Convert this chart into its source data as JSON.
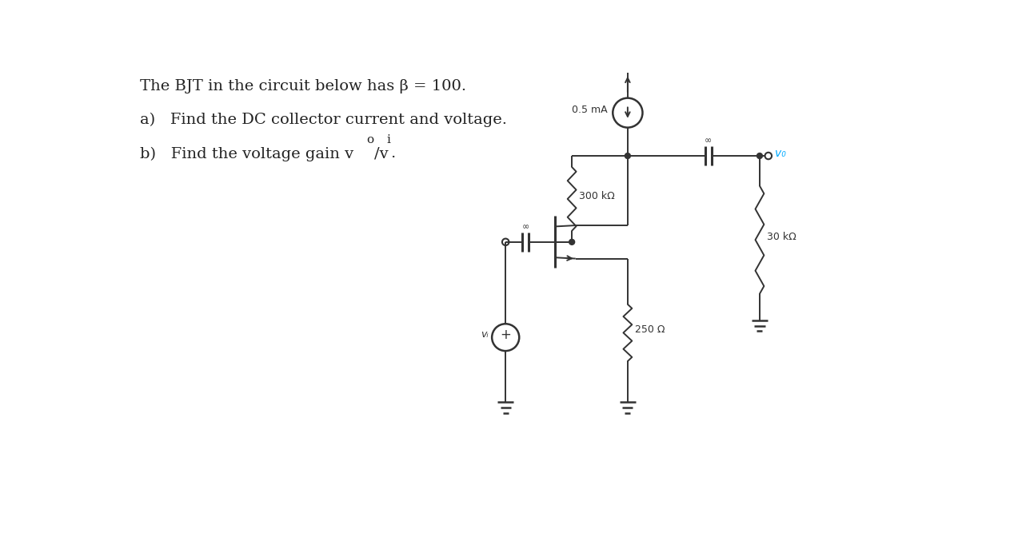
{
  "bg_color": "#ffffff",
  "text_color": "#222222",
  "circuit_color": "#333333",
  "vo_color": "#00aaff",
  "title": "The BJT in the circuit below has β = 100.",
  "part_a": "a)   Find the DC collector current and voltage.",
  "font_size_main": 14,
  "lw": 1.4,
  "cs_label": "0.5 mA",
  "r1_label": "300 kΩ",
  "r2_label": "250 Ω",
  "r3_label": "30 kΩ",
  "inf_sym": "∞",
  "vo_label": "v₀",
  "vi_label": "vᵢ"
}
